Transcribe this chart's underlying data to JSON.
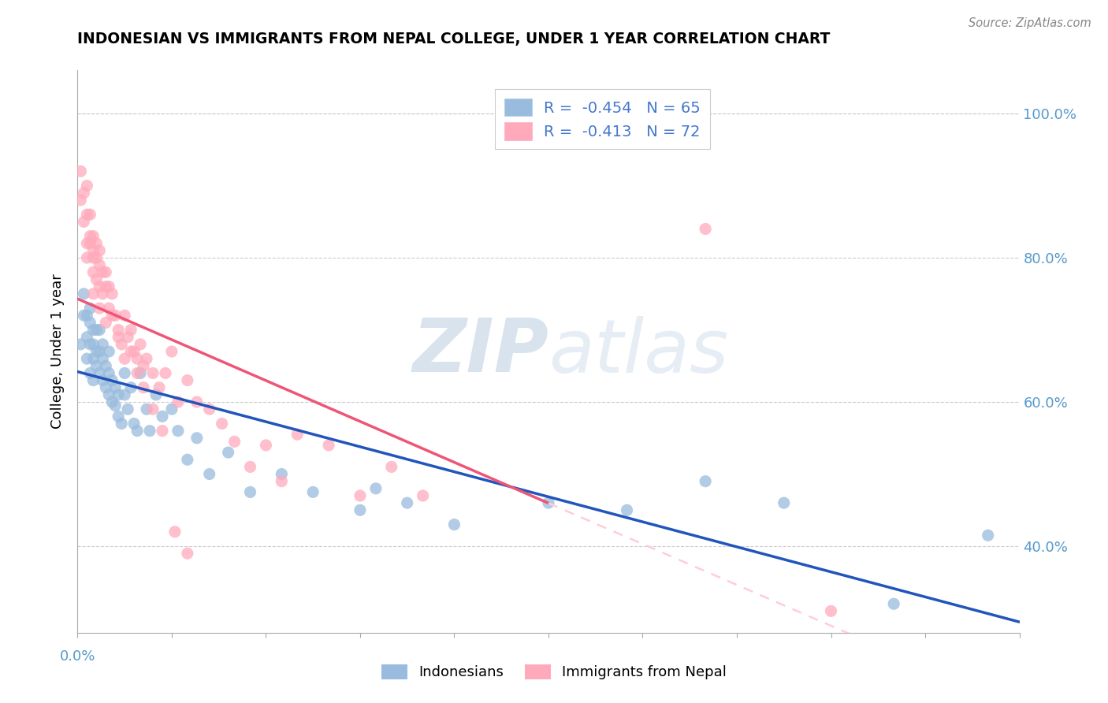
{
  "title": "INDONESIAN VS IMMIGRANTS FROM NEPAL COLLEGE, UNDER 1 YEAR CORRELATION CHART",
  "source": "Source: ZipAtlas.com",
  "ylabel": "College, Under 1 year",
  "xlim": [
    0.0,
    0.3
  ],
  "ylim": [
    0.28,
    1.06
  ],
  "y_ticks": [
    0.4,
    0.6,
    0.8,
    1.0
  ],
  "y_tick_labels": [
    "40.0%",
    "60.0%",
    "80.0%",
    "100.0%"
  ],
  "legend1_r": "-0.454",
  "legend1_n": "65",
  "legend2_r": "-0.413",
  "legend2_n": "72",
  "color_blue": "#99BBDD",
  "color_pink": "#FFAABB",
  "color_blue_line": "#2255BB",
  "color_pink_line": "#EE5577",
  "color_pink_dashed": "#FFCCDD",
  "watermark_zip": "ZIP",
  "watermark_atlas": "atlas",
  "indonesians_x": [
    0.001,
    0.002,
    0.002,
    0.003,
    0.003,
    0.003,
    0.004,
    0.004,
    0.004,
    0.004,
    0.005,
    0.005,
    0.005,
    0.005,
    0.006,
    0.006,
    0.006,
    0.007,
    0.007,
    0.007,
    0.008,
    0.008,
    0.008,
    0.009,
    0.009,
    0.01,
    0.01,
    0.01,
    0.011,
    0.011,
    0.012,
    0.012,
    0.013,
    0.013,
    0.014,
    0.015,
    0.015,
    0.016,
    0.017,
    0.018,
    0.019,
    0.02,
    0.022,
    0.023,
    0.025,
    0.027,
    0.03,
    0.032,
    0.035,
    0.038,
    0.042,
    0.048,
    0.055,
    0.065,
    0.075,
    0.09,
    0.105,
    0.12,
    0.15,
    0.175,
    0.2,
    0.225,
    0.26,
    0.29,
    0.095
  ],
  "indonesians_y": [
    0.68,
    0.72,
    0.75,
    0.66,
    0.69,
    0.72,
    0.64,
    0.68,
    0.71,
    0.73,
    0.63,
    0.66,
    0.7,
    0.68,
    0.65,
    0.67,
    0.7,
    0.64,
    0.67,
    0.7,
    0.63,
    0.66,
    0.68,
    0.62,
    0.65,
    0.61,
    0.64,
    0.67,
    0.6,
    0.63,
    0.595,
    0.62,
    0.58,
    0.61,
    0.57,
    0.61,
    0.64,
    0.59,
    0.62,
    0.57,
    0.56,
    0.64,
    0.59,
    0.56,
    0.61,
    0.58,
    0.59,
    0.56,
    0.52,
    0.55,
    0.5,
    0.53,
    0.475,
    0.5,
    0.475,
    0.45,
    0.46,
    0.43,
    0.46,
    0.45,
    0.49,
    0.46,
    0.32,
    0.415,
    0.48
  ],
  "nepal_x": [
    0.001,
    0.001,
    0.002,
    0.002,
    0.003,
    0.003,
    0.003,
    0.004,
    0.004,
    0.004,
    0.005,
    0.005,
    0.005,
    0.005,
    0.006,
    0.006,
    0.006,
    0.007,
    0.007,
    0.007,
    0.008,
    0.008,
    0.009,
    0.009,
    0.01,
    0.01,
    0.011,
    0.012,
    0.013,
    0.014,
    0.015,
    0.016,
    0.017,
    0.018,
    0.019,
    0.02,
    0.021,
    0.022,
    0.024,
    0.026,
    0.028,
    0.03,
    0.032,
    0.035,
    0.038,
    0.042,
    0.046,
    0.05,
    0.055,
    0.06,
    0.065,
    0.07,
    0.08,
    0.09,
    0.1,
    0.11,
    0.003,
    0.005,
    0.007,
    0.009,
    0.011,
    0.013,
    0.015,
    0.017,
    0.019,
    0.021,
    0.024,
    0.027,
    0.031,
    0.035,
    0.2,
    0.24
  ],
  "nepal_y": [
    0.88,
    0.92,
    0.85,
    0.89,
    0.82,
    0.86,
    0.9,
    0.83,
    0.86,
    0.82,
    0.8,
    0.83,
    0.81,
    0.78,
    0.8,
    0.77,
    0.82,
    0.79,
    0.76,
    0.81,
    0.78,
    0.75,
    0.76,
    0.78,
    0.76,
    0.73,
    0.75,
    0.72,
    0.7,
    0.68,
    0.72,
    0.69,
    0.7,
    0.67,
    0.66,
    0.68,
    0.65,
    0.66,
    0.64,
    0.62,
    0.64,
    0.67,
    0.6,
    0.63,
    0.6,
    0.59,
    0.57,
    0.545,
    0.51,
    0.54,
    0.49,
    0.555,
    0.54,
    0.47,
    0.51,
    0.47,
    0.8,
    0.75,
    0.73,
    0.71,
    0.72,
    0.69,
    0.66,
    0.67,
    0.64,
    0.62,
    0.59,
    0.56,
    0.42,
    0.39,
    0.84,
    0.31
  ]
}
